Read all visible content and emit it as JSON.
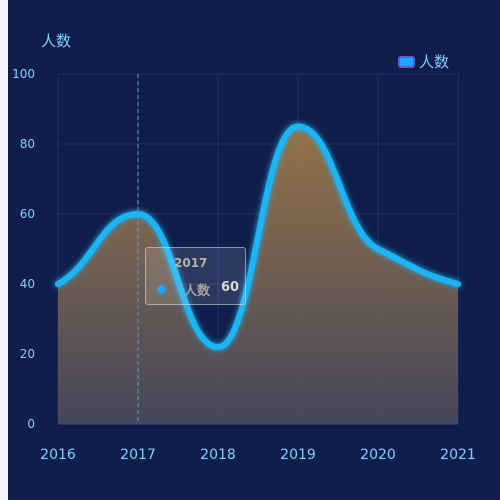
{
  "chart_data": {
    "type": "area",
    "title": "",
    "ylabel": "人数",
    "x": [
      "2016",
      "2017",
      "2018",
      "2019",
      "2020",
      "2021"
    ],
    "series": [
      {
        "name": "人数",
        "values": [
          40,
          60,
          22,
          85,
          50,
          40
        ]
      }
    ],
    "ylim": [
      0,
      100
    ],
    "yticks": [
      0,
      20,
      40,
      60,
      80,
      100
    ],
    "grid": true,
    "legend_position": "top-right",
    "colors": {
      "line": "#1eb4f2",
      "area_top": "#a07a48",
      "area_bottom": "#4a4a5c",
      "axis_text": "#7fd0ff",
      "background": "#0f1e4b"
    }
  },
  "tooltip": {
    "title": "2017",
    "series_name": "人数",
    "value": "60"
  }
}
